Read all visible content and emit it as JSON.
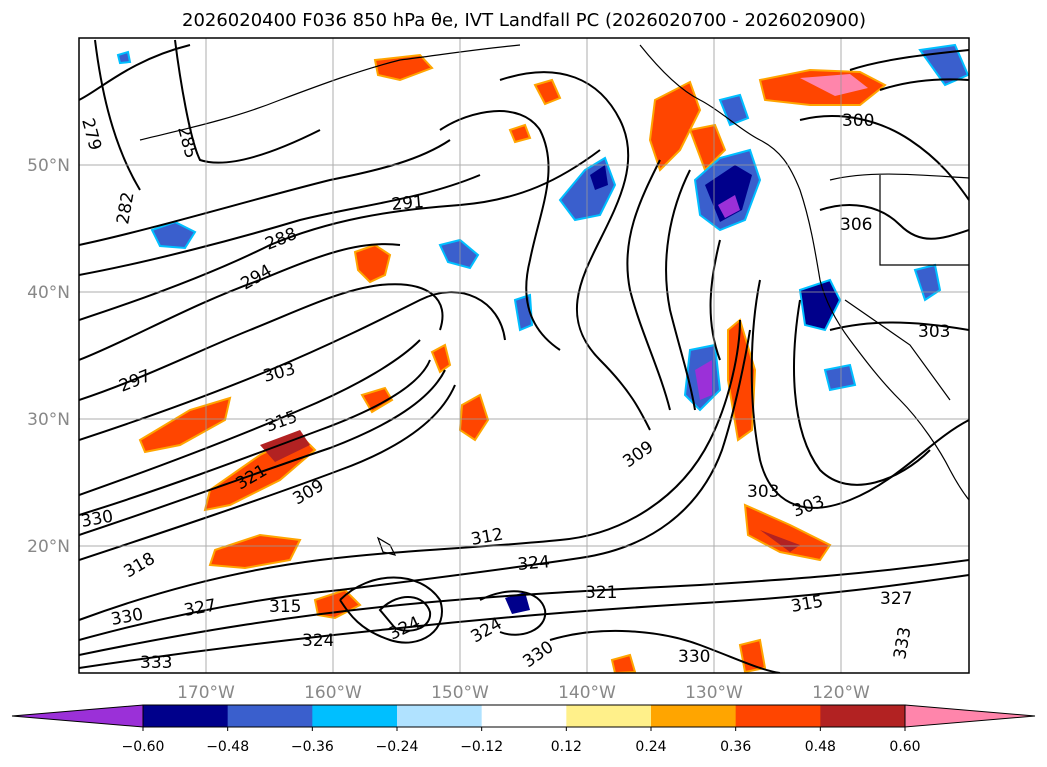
{
  "chart_data": {
    "type": "contour-map",
    "title": "2026020400 F036 850 hPa θe, IVT Landfall PC (2026020700 - 2026020900)",
    "lon_range": [
      -180,
      -110
    ],
    "lat_range": [
      10,
      60
    ],
    "lat_ticks": [
      {
        "value": 50,
        "label": "50°N"
      },
      {
        "value": 40,
        "label": "40°N"
      },
      {
        "value": 30,
        "label": "30°N"
      },
      {
        "value": 20,
        "label": "20°N"
      }
    ],
    "lon_ticks": [
      {
        "value": -170,
        "label": "170°W"
      },
      {
        "value": -160,
        "label": "160°W"
      },
      {
        "value": -150,
        "label": "150°W"
      },
      {
        "value": -140,
        "label": "140°W"
      },
      {
        "value": -130,
        "label": "130°W"
      },
      {
        "value": -120,
        "label": "120°W"
      }
    ],
    "grid": true,
    "colorbar": {
      "extend": "both",
      "levels": [
        -0.6,
        -0.48,
        -0.36,
        -0.24,
        -0.12,
        0.12,
        0.24,
        0.36,
        0.48,
        0.6
      ],
      "tick_labels": [
        "−0.60",
        "−0.48",
        "−0.36",
        "−0.24",
        "−0.12",
        "0.12",
        "0.24",
        "0.36",
        "0.48",
        "0.60"
      ],
      "under_color": "#9b30d8",
      "colors": [
        "#00008b",
        "#3a5fcd",
        "#00bfff",
        "#b0e2ff",
        "#ffffff",
        "#fff08a",
        "#ffa500",
        "#ff4500",
        "#b22222"
      ],
      "over_color": "#ff85ab"
    },
    "contour_labels": [
      "279",
      "282",
      "285",
      "288",
      "291",
      "294",
      "297",
      "300",
      "303",
      "306",
      "309",
      "312",
      "315",
      "318",
      "321",
      "324",
      "327",
      "330",
      "333"
    ]
  }
}
